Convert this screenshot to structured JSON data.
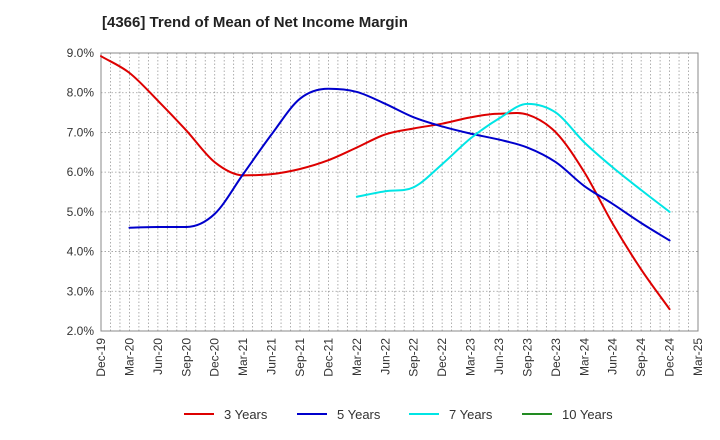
{
  "chart_data": {
    "type": "line",
    "title": "[4366]  Trend of Mean of Net Income Margin",
    "xlabel": "",
    "ylabel": "",
    "ylim": [
      2.0,
      9.0
    ],
    "y_ticks": [
      "2.0%",
      "3.0%",
      "4.0%",
      "5.0%",
      "6.0%",
      "7.0%",
      "8.0%",
      "9.0%"
    ],
    "x_ticks": [
      "Dec-19",
      "Mar-20",
      "Jun-20",
      "Sep-20",
      "Dec-20",
      "Mar-21",
      "Jun-21",
      "Sep-21",
      "Dec-21",
      "Mar-22",
      "Jun-22",
      "Sep-22",
      "Dec-22",
      "Mar-23",
      "Jun-23",
      "Sep-23",
      "Dec-23",
      "Mar-24",
      "Jun-24",
      "Sep-24",
      "Dec-24",
      "Mar-25"
    ],
    "grid": true,
    "legend_position": "bottom",
    "series": [
      {
        "name": "3 Years",
        "color": "#dd0000",
        "points": [
          [
            0,
            8.92
          ],
          [
            1,
            8.5
          ],
          [
            2,
            7.8
          ],
          [
            3,
            7.05
          ],
          [
            4,
            6.25
          ],
          [
            5,
            5.92
          ],
          [
            6,
            5.95
          ],
          [
            7,
            6.08
          ],
          [
            8,
            6.3
          ],
          [
            9,
            6.62
          ],
          [
            10,
            6.95
          ],
          [
            11,
            7.1
          ],
          [
            12,
            7.22
          ],
          [
            13,
            7.38
          ],
          [
            14,
            7.47
          ],
          [
            15,
            7.45
          ],
          [
            16,
            7.0
          ],
          [
            17,
            6.0
          ],
          [
            18,
            4.7
          ],
          [
            19,
            3.55
          ],
          [
            20,
            2.55
          ]
        ]
      },
      {
        "name": "5 Years",
        "color": "#0000cc",
        "points": [
          [
            1,
            4.6
          ],
          [
            2,
            4.62
          ],
          [
            3,
            4.62
          ],
          [
            4,
            4.95
          ],
          [
            5,
            5.95
          ],
          [
            6,
            6.95
          ],
          [
            7,
            7.85
          ],
          [
            8,
            8.1
          ],
          [
            9,
            8.02
          ],
          [
            10,
            7.72
          ],
          [
            11,
            7.38
          ],
          [
            12,
            7.15
          ],
          [
            13,
            6.97
          ],
          [
            14,
            6.82
          ],
          [
            15,
            6.62
          ],
          [
            16,
            6.25
          ],
          [
            17,
            5.65
          ],
          [
            18,
            5.2
          ],
          [
            19,
            4.72
          ],
          [
            20,
            4.28
          ]
        ]
      },
      {
        "name": "7 Years",
        "color": "#00e5e5",
        "points": [
          [
            9,
            5.38
          ],
          [
            10,
            5.52
          ],
          [
            11,
            5.62
          ],
          [
            12,
            6.2
          ],
          [
            13,
            6.85
          ],
          [
            14,
            7.35
          ],
          [
            15,
            7.72
          ],
          [
            16,
            7.5
          ],
          [
            17,
            6.75
          ],
          [
            18,
            6.12
          ],
          [
            19,
            5.55
          ],
          [
            20,
            5.0
          ]
        ]
      },
      {
        "name": "10 Years",
        "color": "#228b22",
        "points": []
      }
    ]
  }
}
